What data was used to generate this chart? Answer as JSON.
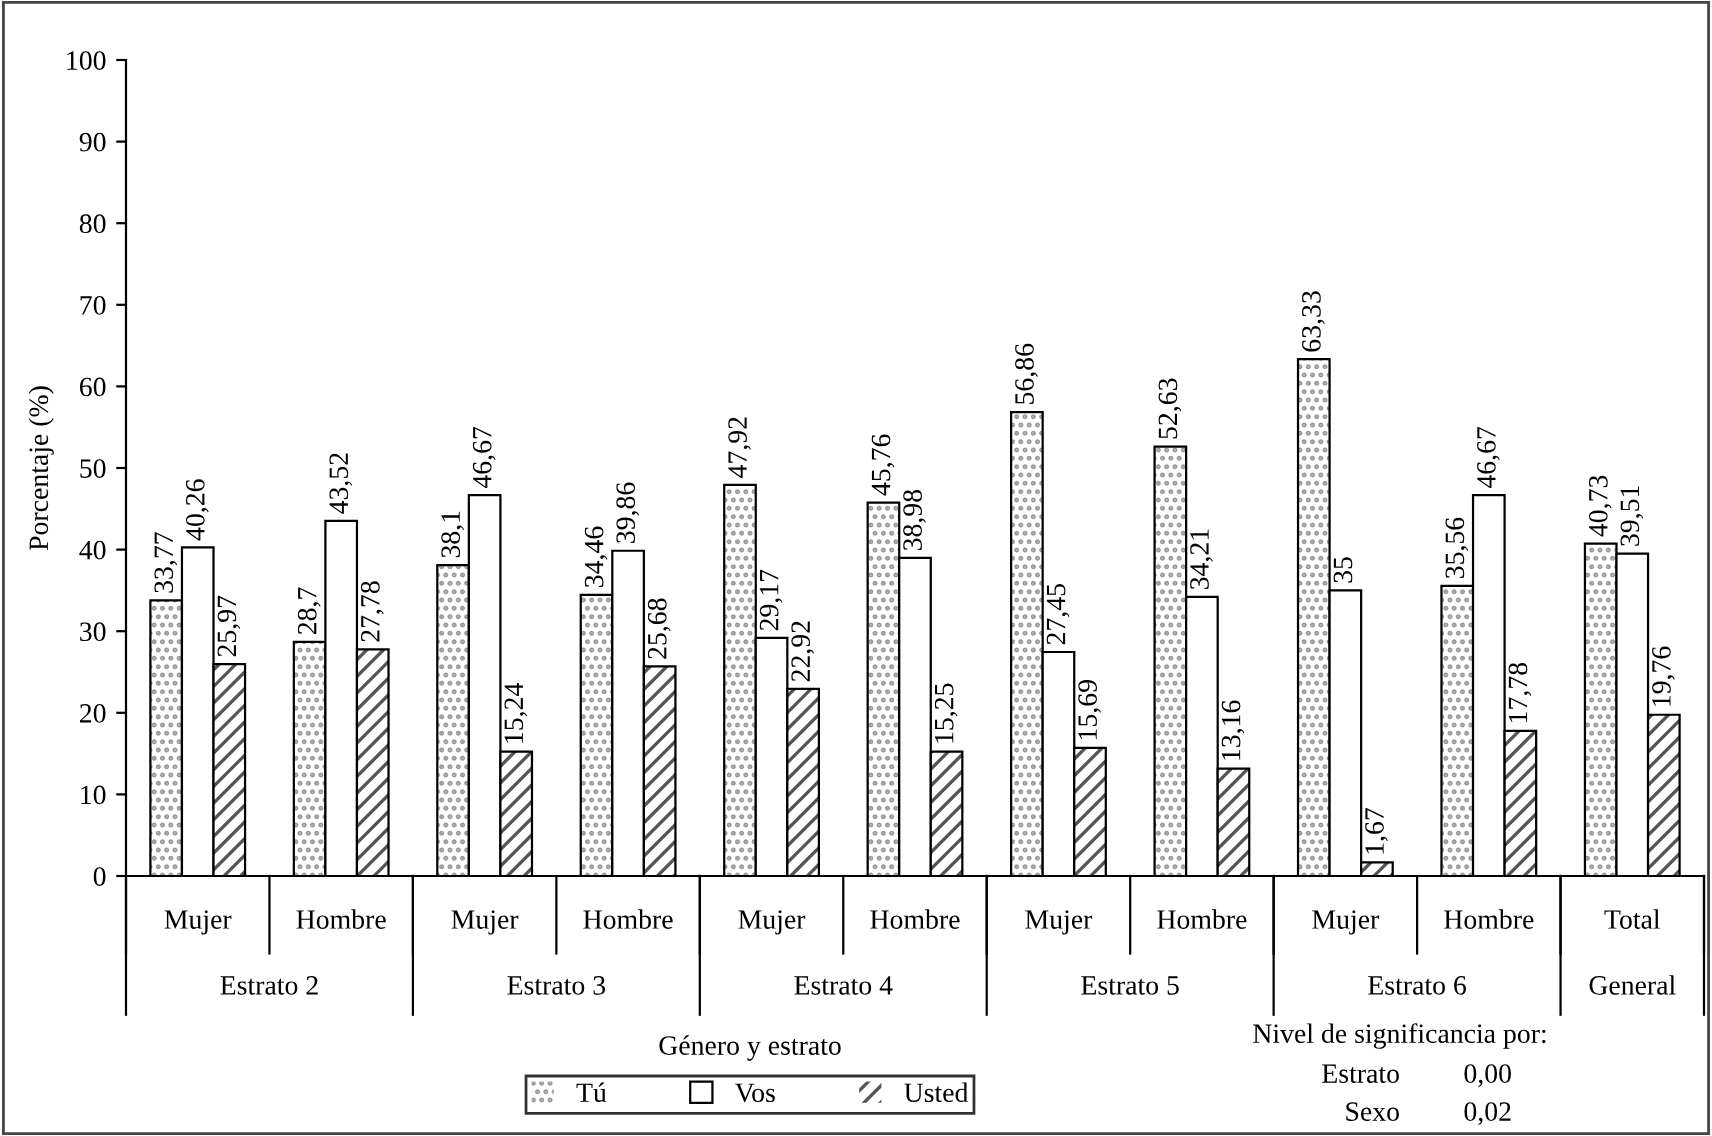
{
  "chart_data": {
    "type": "bar",
    "ylabel": "Porcentaje (%)",
    "xlabel": "Género y estrato",
    "categories": [
      "Mujer",
      "Hombre",
      "Mujer",
      "Hombre",
      "Mujer",
      "Hombre",
      "Mujer",
      "Hombre",
      "Mujer",
      "Hombre",
      "Total"
    ],
    "series": [
      {
        "name": "Tú",
        "color": "#9a9a9a",
        "values": [
          33.77,
          28.7,
          38.1,
          34.46,
          47.92,
          45.76,
          56.86,
          52.63,
          63.33,
          35.56,
          40.73
        ],
        "value_labels": [
          "33,77",
          "28,7",
          "38,1",
          "34,46",
          "47,92",
          "45,76",
          "56,86",
          "52,63",
          "63,33",
          "35,56",
          "40,73"
        ]
      },
      {
        "name": "Vos",
        "color": "#ffffff",
        "values": [
          40.26,
          43.52,
          46.67,
          39.86,
          29.17,
          38.98,
          27.45,
          34.21,
          35,
          46.67,
          39.51
        ],
        "value_labels": [
          "40,26",
          "43,52",
          "46,67",
          "39,86",
          "29,17",
          "38,98",
          "27,45",
          "34,21",
          "35",
          "46,67",
          "39,51"
        ]
      },
      {
        "name": "Usted",
        "color": "#555555",
        "values": [
          25.97,
          27.78,
          15.24,
          25.68,
          22.92,
          15.25,
          15.69,
          13.16,
          1.67,
          17.78,
          19.76
        ],
        "value_labels": [
          "25,97",
          "27,78",
          "15,24",
          "25,68",
          "22,92",
          "15,25",
          "15,69",
          "13,16",
          "1,67",
          "17,78",
          "19,76"
        ]
      }
    ],
    "ylim": [
      0,
      100
    ],
    "yticks": [
      0,
      10,
      20,
      30,
      40,
      50,
      60,
      70,
      80,
      90,
      100
    ],
    "grid": false,
    "legend": "bottom",
    "annotations": [
      "Estrato 2",
      "Estrato 3",
      "Estrato 4",
      "Estrato 5",
      "Estrato 6",
      "General",
      "Nivel de significancia por:",
      "Estrato",
      "0,00",
      "Sexo",
      "0,02"
    ]
  }
}
